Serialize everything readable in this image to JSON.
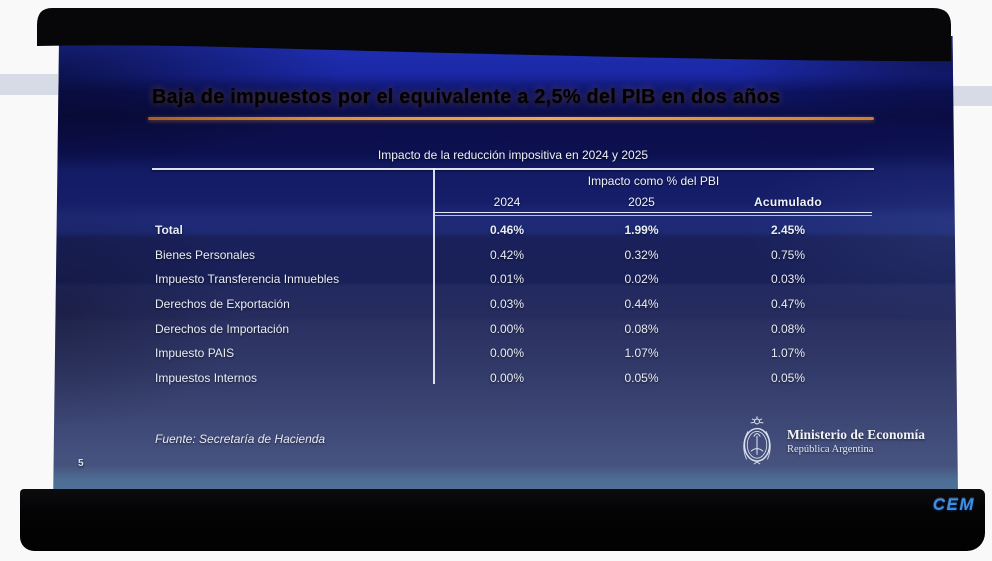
{
  "photo": {
    "watermark": "CEM",
    "page_number": "5"
  },
  "slide": {
    "title": "Baja de impuestos por el equivalente a 2,5% del PIB en dos años",
    "subtitle": "Impacto de la reducción impositiva en 2024 y 2025",
    "table": {
      "group_header": "Impacto como % del PBI",
      "columns": [
        "2024",
        "2025",
        "Acumulado"
      ],
      "rows": [
        {
          "label": "Total",
          "values": [
            "0.46%",
            "1.99%",
            "2.45%"
          ],
          "bold": true
        },
        {
          "label": "Bienes Personales",
          "values": [
            "0.42%",
            "0.32%",
            "0.75%"
          ],
          "bold": false
        },
        {
          "label": "Impuesto Transferencia Inmuebles",
          "values": [
            "0.01%",
            "0.02%",
            "0.03%"
          ],
          "bold": false
        },
        {
          "label": "Derechos de Exportación",
          "values": [
            "0.03%",
            "0.44%",
            "0.47%"
          ],
          "bold": false
        },
        {
          "label": "Derechos de Importación",
          "values": [
            "0.00%",
            "0.08%",
            "0.08%"
          ],
          "bold": false
        },
        {
          "label": "Impuesto PAIS",
          "values": [
            "0.00%",
            "1.07%",
            "1.07%"
          ],
          "bold": false
        },
        {
          "label": "Impuestos Internos",
          "values": [
            "0.00%",
            "0.05%",
            "0.05%"
          ],
          "bold": false
        }
      ]
    },
    "source": "Fuente: Secretaría de Hacienda",
    "logo": {
      "ministry": "Ministerio de Economía",
      "country": "República Argentina",
      "emblem_icon": "argentina-coat-of-arms"
    }
  },
  "chart_data": {
    "type": "table",
    "title": "Impacto de la reducción impositiva en 2024 y 2025",
    "group_header": "Impacto como % del PBI",
    "unit": "% del PBI",
    "columns": [
      "2024",
      "2025",
      "Acumulado"
    ],
    "rows": [
      {
        "label": "Total",
        "values": [
          0.46,
          1.99,
          2.45
        ]
      },
      {
        "label": "Bienes Personales",
        "values": [
          0.42,
          0.32,
          0.75
        ]
      },
      {
        "label": "Impuesto Transferencia Inmuebles",
        "values": [
          0.01,
          0.02,
          0.03
        ]
      },
      {
        "label": "Derechos de Exportación",
        "values": [
          0.03,
          0.44,
          0.47
        ]
      },
      {
        "label": "Derechos de Importación",
        "values": [
          0.0,
          0.08,
          0.08
        ]
      },
      {
        "label": "Impuesto PAIS",
        "values": [
          0.0,
          1.07,
          1.07
        ]
      },
      {
        "label": "Impuestos Internos",
        "values": [
          0.0,
          0.05,
          0.05
        ]
      }
    ]
  },
  "colors": {
    "title": "#f2a85c",
    "title_underline": "#cf7e2f",
    "slide_text": "#eef1f8",
    "screen_top_blue": "#1e2db0",
    "screen_bottom_slate": "#4d6e94",
    "watermark_blue": "#3d92e6"
  }
}
